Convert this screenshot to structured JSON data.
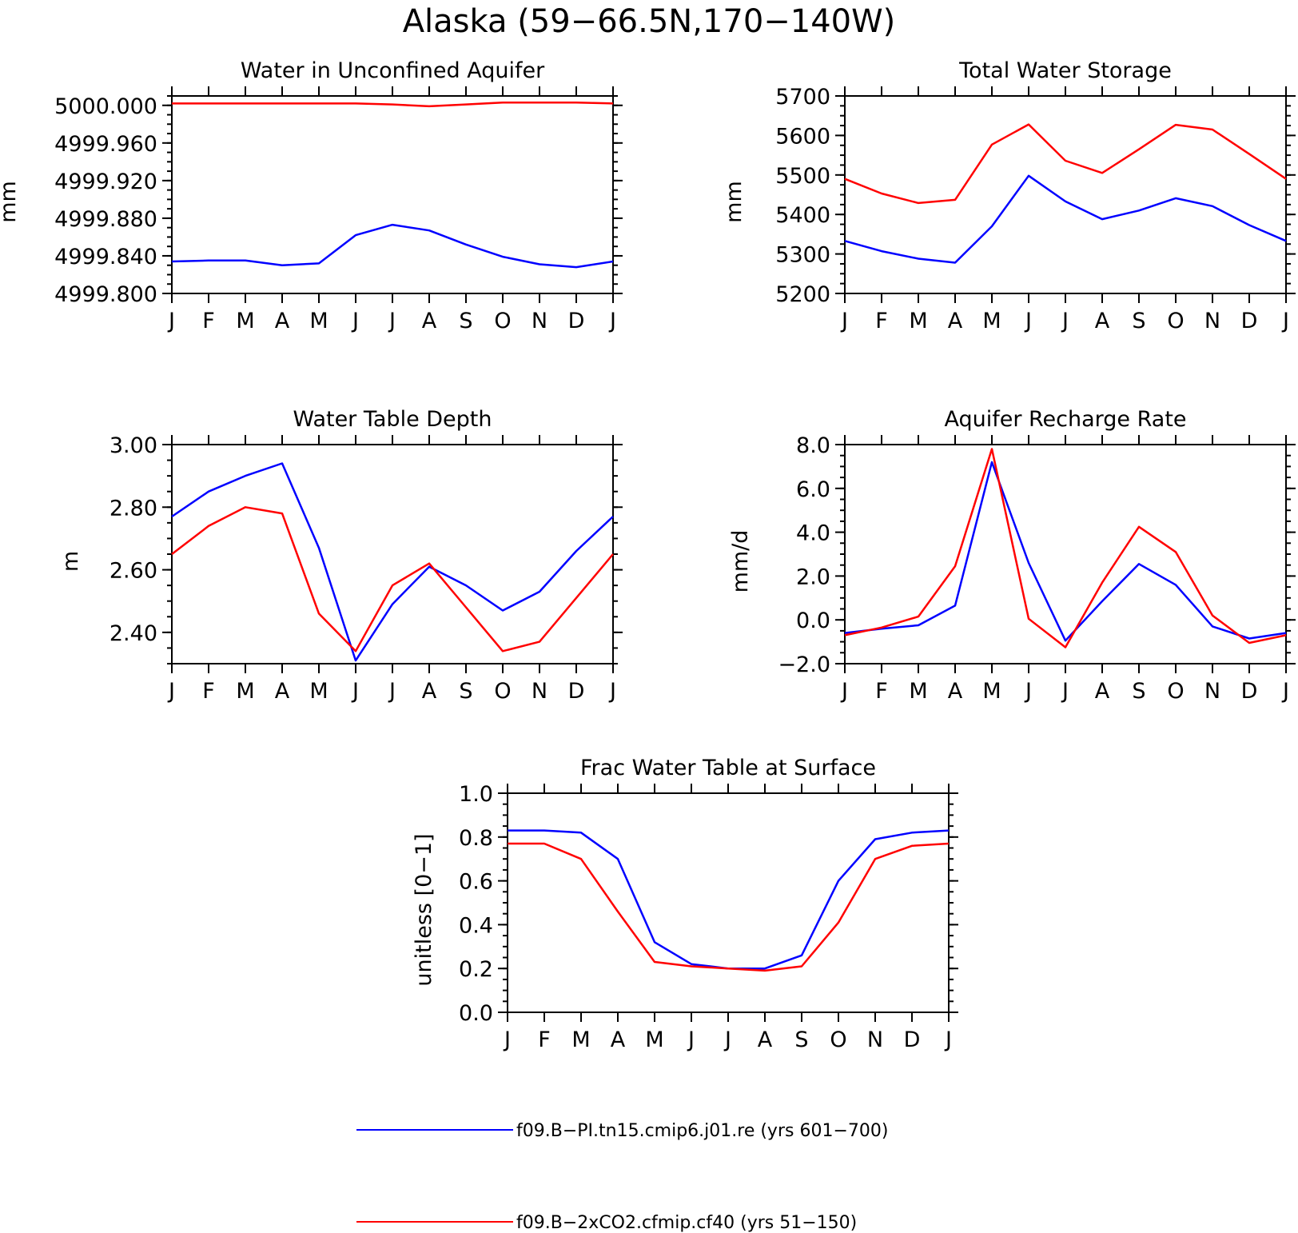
{
  "figure": {
    "title": "Alaska (59−66.5N,170−140W)",
    "colors": {
      "series_1": "#0000ff",
      "series_2": "#ff0000",
      "frame": "#000000"
    }
  },
  "legend": [
    {
      "label": "f09.B−PI.tn15.cmip6.j01.re (yrs 601−700)",
      "color": "#0000ff"
    },
    {
      "label": "f09.B−2xCO2.cfmip.cf40 (yrs 51−150)",
      "color": "#ff0000"
    }
  ],
  "chart_data": [
    {
      "type": "line",
      "title": "Water in Unconfined Aquifer",
      "ylabel": "mm",
      "xlabel": "",
      "categories": [
        "J",
        "F",
        "M",
        "A",
        "M",
        "J",
        "J",
        "A",
        "S",
        "O",
        "N",
        "D",
        "J"
      ],
      "ylim": [
        4999.8,
        5000.01
      ],
      "yticks": [
        4999.8,
        4999.84,
        4999.88,
        4999.92,
        4999.96,
        5000.0
      ],
      "ytick_labels": [
        "4999.800",
        "4999.840",
        "4999.880",
        "4999.920",
        "4999.960",
        "5000.000"
      ],
      "series": [
        {
          "color": "#0000ff",
          "values": [
            4999.834,
            4999.835,
            4999.835,
            4999.83,
            4999.832,
            4999.862,
            4999.873,
            4999.867,
            4999.852,
            4999.839,
            4999.831,
            4999.828,
            4999.834
          ]
        },
        {
          "color": "#ff0000",
          "values": [
            5000.002,
            5000.002,
            5000.002,
            5000.002,
            5000.002,
            5000.002,
            5000.001,
            4999.999,
            5000.001,
            5000.003,
            5000.003,
            5000.003,
            5000.002
          ]
        }
      ]
    },
    {
      "type": "line",
      "title": "Total Water Storage",
      "ylabel": "mm",
      "xlabel": "",
      "categories": [
        "J",
        "F",
        "M",
        "A",
        "M",
        "J",
        "J",
        "A",
        "S",
        "O",
        "N",
        "D",
        "J"
      ],
      "ylim": [
        5200,
        5700
      ],
      "yticks": [
        5200,
        5300,
        5400,
        5500,
        5600,
        5700
      ],
      "ytick_labels": [
        "5200",
        "5300",
        "5400",
        "5500",
        "5600",
        "5700"
      ],
      "series": [
        {
          "color": "#0000ff",
          "values": [
            5333,
            5307,
            5288,
            5278,
            5370,
            5498,
            5433,
            5388,
            5410,
            5441,
            5421,
            5373,
            5333
          ]
        },
        {
          "color": "#ff0000",
          "values": [
            5490,
            5453,
            5429,
            5437,
            5577,
            5628,
            5536,
            5505,
            5565,
            5627,
            5615,
            5553,
            5490
          ]
        }
      ]
    },
    {
      "type": "line",
      "title": "Water Table Depth",
      "ylabel": "m",
      "xlabel": "",
      "categories": [
        "J",
        "F",
        "M",
        "A",
        "M",
        "J",
        "J",
        "A",
        "S",
        "O",
        "N",
        "D",
        "J"
      ],
      "ylim": [
        2.3,
        3.0
      ],
      "yticks": [
        2.4,
        2.6,
        2.8,
        3.0
      ],
      "ytick_labels": [
        "2.40",
        "2.60",
        "2.80",
        "3.00"
      ],
      "series": [
        {
          "color": "#0000ff",
          "values": [
            2.77,
            2.85,
            2.9,
            2.94,
            2.67,
            2.31,
            2.49,
            2.61,
            2.55,
            2.47,
            2.53,
            2.66,
            2.77
          ]
        },
        {
          "color": "#ff0000",
          "values": [
            2.65,
            2.74,
            2.8,
            2.78,
            2.46,
            2.34,
            2.55,
            2.62,
            2.48,
            2.34,
            2.37,
            2.51,
            2.65
          ]
        }
      ]
    },
    {
      "type": "line",
      "title": "Aquifer Recharge Rate",
      "ylabel": "mm/d",
      "xlabel": "",
      "categories": [
        "J",
        "F",
        "M",
        "A",
        "M",
        "J",
        "J",
        "A",
        "S",
        "O",
        "N",
        "D",
        "J"
      ],
      "ylim": [
        -2.0,
        8.0
      ],
      "yticks": [
        -2.0,
        0.0,
        2.0,
        4.0,
        6.0,
        8.0
      ],
      "ytick_labels": [
        "−2.0",
        "0.0",
        "2.0",
        "4.0",
        "6.0",
        "8.0"
      ],
      "series": [
        {
          "color": "#0000ff",
          "values": [
            -0.6,
            -0.4,
            -0.25,
            0.65,
            7.2,
            2.6,
            -0.95,
            0.85,
            2.55,
            1.6,
            -0.3,
            -0.85,
            -0.6
          ]
        },
        {
          "color": "#ff0000",
          "values": [
            -0.7,
            -0.35,
            0.15,
            2.45,
            7.8,
            0.05,
            -1.25,
            1.7,
            4.25,
            3.1,
            0.2,
            -1.05,
            -0.7
          ]
        }
      ]
    },
    {
      "type": "line",
      "title": "Frac Water Table at Surface",
      "ylabel": "unitless [0−1]",
      "xlabel": "",
      "categories": [
        "J",
        "F",
        "M",
        "A",
        "M",
        "J",
        "J",
        "A",
        "S",
        "O",
        "N",
        "D",
        "J"
      ],
      "ylim": [
        0.0,
        1.0
      ],
      "yticks": [
        0.0,
        0.2,
        0.4,
        0.6,
        0.8,
        1.0
      ],
      "ytick_labels": [
        "0.0",
        "0.2",
        "0.4",
        "0.6",
        "0.8",
        "1.0"
      ],
      "series": [
        {
          "color": "#0000ff",
          "values": [
            0.83,
            0.83,
            0.82,
            0.7,
            0.32,
            0.22,
            0.2,
            0.2,
            0.26,
            0.6,
            0.79,
            0.82,
            0.83
          ]
        },
        {
          "color": "#ff0000",
          "values": [
            0.77,
            0.77,
            0.7,
            0.46,
            0.23,
            0.21,
            0.2,
            0.19,
            0.21,
            0.41,
            0.7,
            0.76,
            0.77
          ]
        }
      ]
    }
  ]
}
